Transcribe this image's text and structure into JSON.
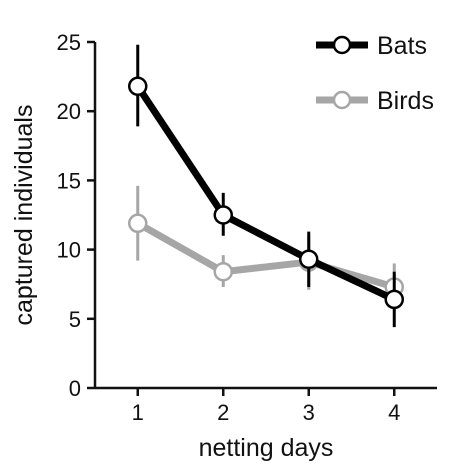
{
  "chart_data": {
    "type": "line",
    "xlabel": "netting days",
    "ylabel": "captured individuals",
    "x": [
      1,
      2,
      3,
      4
    ],
    "xlim": [
      0.5,
      4.5
    ],
    "ylim": [
      0,
      25
    ],
    "xticks": [
      "1",
      "2",
      "3",
      "4"
    ],
    "yticks": [
      "0",
      "5",
      "10",
      "15",
      "20",
      "25"
    ],
    "grid": false,
    "legend_position": "top-right",
    "series": [
      {
        "name": "Bats",
        "color": "#000000",
        "values": [
          21.8,
          12.5,
          9.3,
          6.4
        ],
        "error_low": [
          18.9,
          11.0,
          7.3,
          4.4
        ],
        "error_high": [
          24.8,
          14.1,
          11.3,
          8.4
        ]
      },
      {
        "name": "Birds",
        "color": "#a6a6a6",
        "values": [
          11.9,
          8.4,
          9.1,
          7.3
        ],
        "error_low": [
          9.2,
          7.3,
          7.1,
          5.6
        ],
        "error_high": [
          14.6,
          9.6,
          11.1,
          9.0
        ]
      }
    ]
  }
}
